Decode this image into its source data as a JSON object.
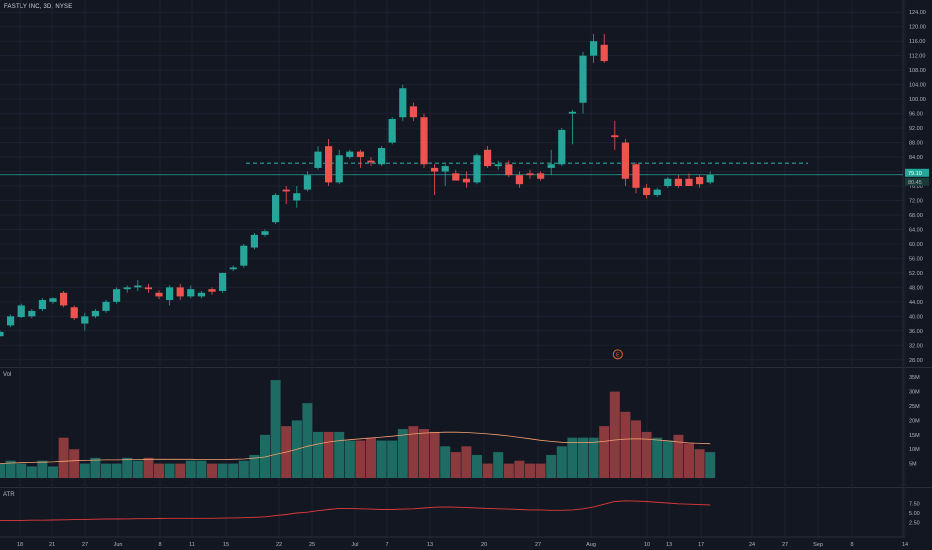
{
  "header": {
    "symbol_line": "FASTLY INC, 3D, NYSE"
  },
  "panes": {
    "volume_label": "Vol",
    "atr_label": "ATR",
    "earnings_marker": "E"
  },
  "colors": {
    "up": "#26a69a",
    "down": "#ef5350",
    "vol_up": "#1e6b63",
    "vol_down": "#8b3a3e",
    "background": "#131722",
    "ma": "#f5a070",
    "atr": "#e03a3a",
    "line": "#26a69a"
  },
  "price_axis": {
    "ticks": [
      124,
      120,
      116,
      112,
      108,
      104,
      100,
      96,
      92,
      88,
      84,
      80,
      76,
      72,
      68,
      64,
      60,
      56,
      52,
      48,
      44,
      40,
      36,
      32,
      28
    ],
    "tick_labels": [
      "124.00",
      "120.00",
      "116.00",
      "112.00",
      "108.00",
      "104.00",
      "100.00",
      "96.00",
      "92.00",
      "88.00",
      "84.00",
      "80.00",
      "76.00",
      "72.00",
      "68.00",
      "64.00",
      "60.00",
      "56.00",
      "52.00",
      "48.00",
      "44.00",
      "40.00",
      "36.00",
      "32.00",
      "28.00"
    ],
    "current_price_label": "79.10",
    "secondary_label": "80.45"
  },
  "volume_axis": {
    "tick_labels": [
      "35M",
      "30M",
      "25M",
      "20M",
      "15M",
      "10M",
      "5M"
    ],
    "ticks": [
      35,
      30,
      25,
      20,
      15,
      10,
      5
    ]
  },
  "atr_axis": {
    "tick_labels": [
      "7.50",
      "5.00",
      "2.50"
    ],
    "ticks": [
      7.5,
      5,
      2.5
    ]
  },
  "time_axis": {
    "labels": [
      "18",
      "21",
      "27",
      "Jun",
      "8",
      "11",
      "15",
      "22",
      "25",
      "Jul",
      "7",
      "13",
      "20",
      "27",
      "Aug",
      "10",
      "13",
      "17",
      "24",
      "27",
      "Sep",
      "8",
      "14"
    ]
  },
  "chart_data": {
    "type": "candlestick",
    "candles": [
      {
        "o": 34.5,
        "h": 36,
        "l": 34.5,
        "c": 35.7
      },
      {
        "o": 37.5,
        "h": 40.5,
        "l": 37,
        "c": 40
      },
      {
        "o": 39.8,
        "h": 43.5,
        "l": 39.5,
        "c": 43
      },
      {
        "o": 40,
        "h": 42,
        "l": 39.5,
        "c": 41.5
      },
      {
        "o": 42,
        "h": 45,
        "l": 41.5,
        "c": 44.5
      },
      {
        "o": 44,
        "h": 45.2,
        "l": 43.5,
        "c": 45
      },
      {
        "o": 46.5,
        "h": 47,
        "l": 42.5,
        "c": 43
      },
      {
        "o": 42.5,
        "h": 43,
        "l": 39,
        "c": 39.5
      },
      {
        "o": 38,
        "h": 41,
        "l": 36,
        "c": 40
      },
      {
        "o": 40,
        "h": 42,
        "l": 39.5,
        "c": 41.5
      },
      {
        "o": 41.5,
        "h": 44.5,
        "l": 41,
        "c": 44
      },
      {
        "o": 44,
        "h": 48,
        "l": 43.5,
        "c": 47.5
      },
      {
        "o": 47.5,
        "h": 48.5,
        "l": 46.5,
        "c": 48
      },
      {
        "o": 48,
        "h": 50,
        "l": 47,
        "c": 48.5
      },
      {
        "o": 48,
        "h": 49,
        "l": 46.5,
        "c": 47.5
      },
      {
        "o": 46.5,
        "h": 47.2,
        "l": 44.8,
        "c": 45.5
      },
      {
        "o": 44.5,
        "h": 48.5,
        "l": 43,
        "c": 48
      },
      {
        "o": 48,
        "h": 49,
        "l": 44.5,
        "c": 45.5
      },
      {
        "o": 45.5,
        "h": 48.5,
        "l": 45,
        "c": 47.5
      },
      {
        "o": 45.5,
        "h": 47,
        "l": 45,
        "c": 46.5
      },
      {
        "o": 47.5,
        "h": 48,
        "l": 46,
        "c": 46.8
      },
      {
        "o": 47,
        "h": 52,
        "l": 46.5,
        "c": 52
      },
      {
        "o": 53,
        "h": 54,
        "l": 52.5,
        "c": 53.5
      },
      {
        "o": 54,
        "h": 60,
        "l": 53.5,
        "c": 59.5
      },
      {
        "o": 59,
        "h": 63,
        "l": 58.5,
        "c": 62.5
      },
      {
        "o": 62.5,
        "h": 64,
        "l": 62,
        "c": 63.5
      },
      {
        "o": 66,
        "h": 74,
        "l": 65.5,
        "c": 73.5
      },
      {
        "o": 75,
        "h": 76,
        "l": 71,
        "c": 74.5
      },
      {
        "o": 72,
        "h": 76,
        "l": 70,
        "c": 74
      },
      {
        "o": 75,
        "h": 80,
        "l": 74.5,
        "c": 79
      },
      {
        "o": 81,
        "h": 87,
        "l": 80.5,
        "c": 85.5
      },
      {
        "o": 87,
        "h": 89,
        "l": 76,
        "c": 77
      },
      {
        "o": 77,
        "h": 86,
        "l": 76.5,
        "c": 84.5
      },
      {
        "o": 84,
        "h": 86,
        "l": 83.5,
        "c": 85.5
      },
      {
        "o": 85.5,
        "h": 86,
        "l": 81,
        "c": 84
      },
      {
        "o": 83,
        "h": 84,
        "l": 81.5,
        "c": 82.5
      },
      {
        "o": 82,
        "h": 87,
        "l": 81.5,
        "c": 86.5
      },
      {
        "o": 88,
        "h": 95,
        "l": 87.5,
        "c": 94.5
      },
      {
        "o": 95,
        "h": 104,
        "l": 94,
        "c": 103
      },
      {
        "o": 98,
        "h": 99,
        "l": 94,
        "c": 95
      },
      {
        "o": 95,
        "h": 96,
        "l": 81,
        "c": 82
      },
      {
        "o": 81,
        "h": 82,
        "l": 73.5,
        "c": 80
      },
      {
        "o": 80,
        "h": 82,
        "l": 76,
        "c": 81.5
      },
      {
        "o": 79.5,
        "h": 80.5,
        "l": 77.5,
        "c": 77.5
      },
      {
        "o": 78,
        "h": 80,
        "l": 75.5,
        "c": 77
      },
      {
        "o": 77,
        "h": 85,
        "l": 76.5,
        "c": 84.5
      },
      {
        "o": 86,
        "h": 87,
        "l": 81,
        "c": 81.5
      },
      {
        "o": 81.5,
        "h": 83,
        "l": 80.5,
        "c": 82
      },
      {
        "o": 82,
        "h": 83,
        "l": 78.5,
        "c": 79
      },
      {
        "o": 79,
        "h": 80,
        "l": 75.5,
        "c": 76.5
      },
      {
        "o": 79.5,
        "h": 80.5,
        "l": 78,
        "c": 79
      },
      {
        "o": 79.5,
        "h": 80,
        "l": 77.5,
        "c": 78
      },
      {
        "o": 81,
        "h": 86,
        "l": 79,
        "c": 82
      },
      {
        "o": 82,
        "h": 92,
        "l": 81.5,
        "c": 91.5
      },
      {
        "o": 96,
        "h": 97,
        "l": 87.5,
        "c": 96.5
      },
      {
        "o": 99,
        "h": 113,
        "l": 96,
        "c": 112
      },
      {
        "o": 112,
        "h": 118,
        "l": 110,
        "c": 116
      },
      {
        "o": 115,
        "h": 118,
        "l": 110,
        "c": 110.5
      },
      {
        "o": 90,
        "h": 94,
        "l": 86,
        "c": 89.5
      },
      {
        "o": 88,
        "h": 89,
        "l": 76,
        "c": 78
      },
      {
        "o": 82,
        "h": 82.5,
        "l": 74,
        "c": 75.5
      },
      {
        "o": 75.5,
        "h": 76.5,
        "l": 72.5,
        "c": 73.5
      },
      {
        "o": 73.5,
        "h": 75.5,
        "l": 73,
        "c": 75
      },
      {
        "o": 76,
        "h": 78.5,
        "l": 75.5,
        "c": 78
      },
      {
        "o": 78,
        "h": 79,
        "l": 75.5,
        "c": 76
      },
      {
        "o": 78,
        "h": 79.5,
        "l": 76,
        "c": 76
      },
      {
        "o": 78.5,
        "h": 79,
        "l": 75.5,
        "c": 76.5
      },
      {
        "o": 77,
        "h": 80,
        "l": 76.5,
        "c": 79.1
      }
    ],
    "volume": [
      5,
      6,
      5,
      4,
      6,
      4,
      14,
      10,
      5,
      7,
      5,
      5,
      7,
      6,
      7,
      5,
      5,
      5,
      6,
      6,
      5,
      5,
      5,
      6,
      8,
      15,
      34,
      18,
      20,
      26,
      16,
      16,
      16,
      13,
      13,
      14,
      13,
      13,
      17,
      18,
      17,
      16,
      11,
      9,
      11,
      8,
      5,
      9,
      5,
      6,
      5,
      5,
      8,
      11,
      14,
      14,
      14,
      18,
      30,
      23,
      20,
      16,
      14,
      13,
      15,
      12,
      10,
      9
    ],
    "volume_ma": [
      5,
      5.2,
      5.3,
      5.4,
      5.5,
      5.6,
      5.8,
      6,
      6.1,
      6.2,
      6.3,
      6.3,
      6.4,
      6.4,
      6.5,
      6.5,
      6.5,
      6.5,
      6.5,
      6.4,
      6.4,
      6.4,
      6.5,
      6.6,
      6.9,
      7.3,
      8.2,
      9,
      10,
      11,
      11.8,
      12.5,
      13,
      13.3,
      13.6,
      13.9,
      14.2,
      14.5,
      14.9,
      15.3,
      15.6,
      15.8,
      15.9,
      15.9,
      15.8,
      15.6,
      15.3,
      15,
      14.6,
      14.1,
      13.6,
      13.1,
      12.7,
      12.4,
      12.3,
      12.3,
      12.4,
      12.7,
      13.2,
      13.5,
      13.6,
      13.5,
      13.2,
      12.9,
      12.5,
      12.2,
      12,
      11.9
    ],
    "atr": [
      3,
      3,
      3.05,
      3.1,
      3.1,
      3.15,
      3.2,
      3.25,
      3.3,
      3.35,
      3.4,
      3.4,
      3.45,
      3.5,
      3.5,
      3.55,
      3.6,
      3.6,
      3.6,
      3.6,
      3.6,
      3.65,
      3.7,
      3.75,
      3.85,
      4,
      4.3,
      4.6,
      5,
      5.2,
      5.6,
      5.9,
      6.2,
      6.2,
      6.1,
      6,
      5.9,
      5.9,
      6,
      6.1,
      6.3,
      6.5,
      6.6,
      6.5,
      6.4,
      6.3,
      6.2,
      6.1,
      6,
      5.9,
      5.8,
      5.8,
      5.7,
      5.7,
      5.8,
      6.1,
      6.6,
      7.3,
      8,
      8.2,
      8.1,
      8,
      7.8,
      7.6,
      7.4,
      7.3,
      7.2,
      7.1
    ],
    "dashed_level": 82.3,
    "horizontal_line": 79.1,
    "earnings_price": 29.5,
    "price_ylim": [
      26,
      126
    ],
    "volume_ylim": [
      0,
      37.5
    ],
    "atr_ylim": [
      0,
      10.5
    ]
  }
}
